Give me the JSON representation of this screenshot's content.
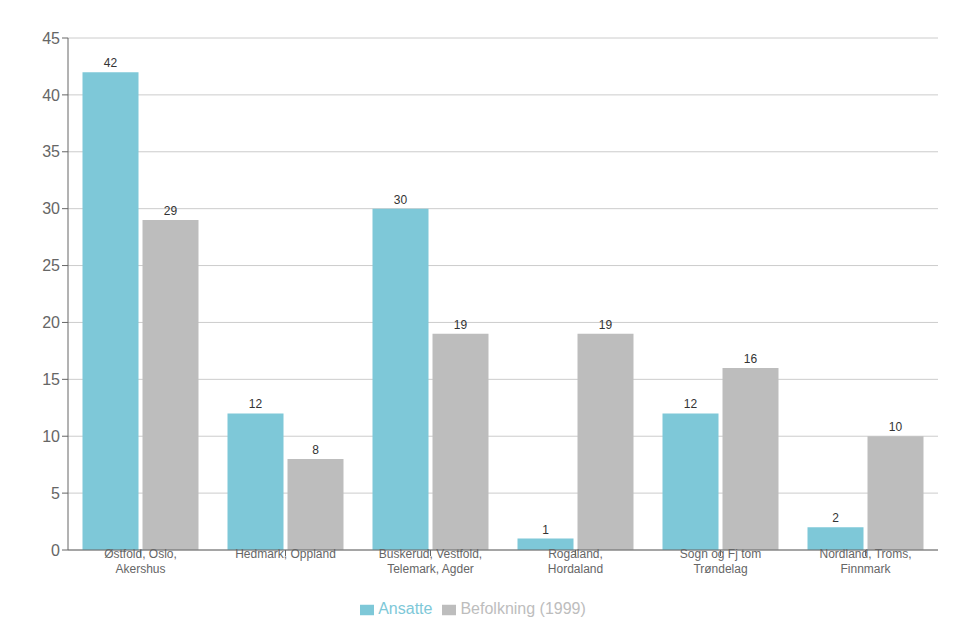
{
  "chart_data": {
    "type": "bar",
    "categories": [
      "Østfold, Oslo,\nAkershus",
      "Hedmark, Oppland",
      "Buskerud, Vestfold,\nTelemark, Agder",
      "Rogaland,\nHordaland",
      "Sogn og Fj tom\nTrøndelag",
      "Nordland, Troms,\nFinnmark"
    ],
    "series": [
      {
        "name": "Ansatte",
        "color": "#7EC8D8",
        "values": [
          42,
          12,
          30,
          1,
          12,
          2
        ]
      },
      {
        "name": "Befolkning (1999)",
        "color": "#BDBDBD",
        "values": [
          29,
          8,
          19,
          19,
          16,
          10
        ]
      }
    ],
    "ylim": [
      0,
      45
    ],
    "yticks": [
      0,
      5,
      10,
      15,
      20,
      25,
      30,
      35,
      40,
      45
    ],
    "grid": true,
    "data_labels": true,
    "legend": "bottom"
  }
}
